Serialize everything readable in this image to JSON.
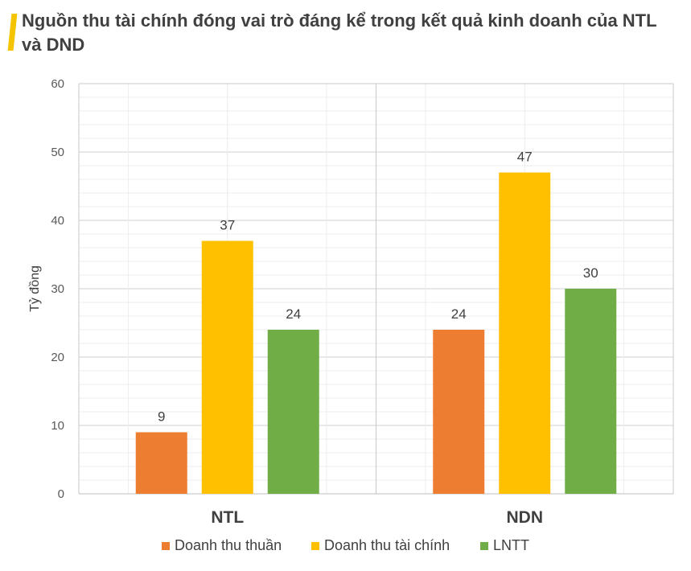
{
  "title": "Nguồn thu tài chính đóng vai trò đáng kể trong kết quả kinh doanh của NTL và DND",
  "colors": {
    "accent": "#f5c400",
    "orange": "#ed7d31",
    "gold": "#ffc000",
    "green": "#70ad47"
  },
  "chart_data": {
    "type": "bar",
    "title": "Nguồn thu tài chính đóng vai trò đáng kể trong kết quả kinh doanh của NTL và DND",
    "xlabel": "",
    "ylabel": "Tỷ đồng",
    "ylim": [
      0,
      60
    ],
    "yticks": [
      0,
      10,
      20,
      30,
      40,
      50,
      60
    ],
    "grid": true,
    "legend_position": "bottom",
    "categories": [
      "NTL",
      "NDN"
    ],
    "series": [
      {
        "name": "Doanh thu thuần",
        "color": "#ed7d31",
        "values": [
          9,
          24
        ]
      },
      {
        "name": "Doanh thu tài chính",
        "color": "#ffc000",
        "values": [
          37,
          47
        ]
      },
      {
        "name": "LNTT",
        "color": "#70ad47",
        "values": [
          24,
          30
        ]
      }
    ]
  }
}
